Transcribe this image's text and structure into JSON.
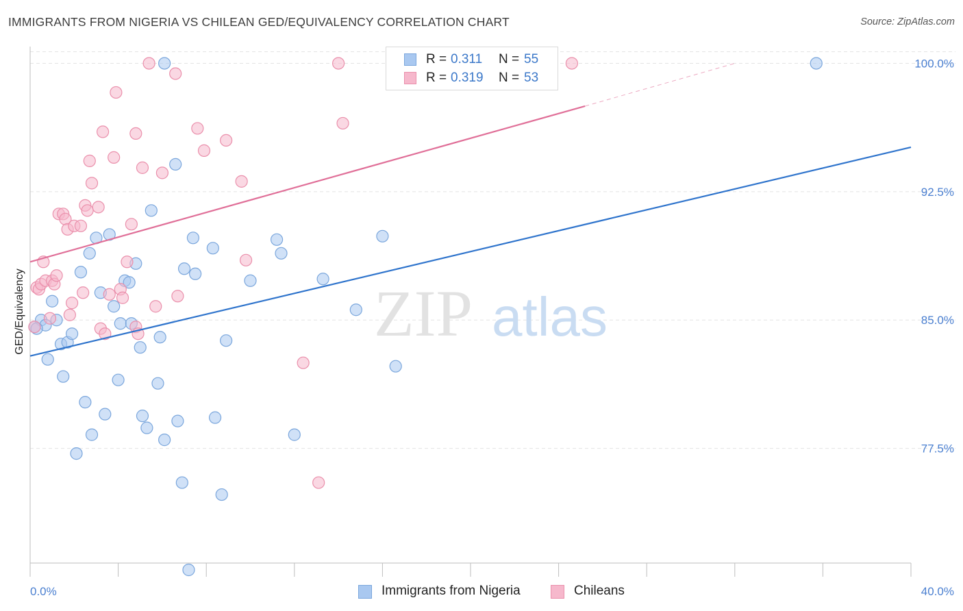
{
  "header": {
    "title": "IMMIGRANTS FROM NIGERIA VS CHILEAN GED/EQUIVALENCY CORRELATION CHART",
    "source": "Source: ZipAtlas.com"
  },
  "watermark": {
    "zip": "ZIP",
    "atlas": "atlas"
  },
  "legend": {
    "r_label": "R =",
    "n_label": "N =",
    "series": [
      {
        "r": "0.311",
        "n": "55"
      },
      {
        "r": "0.319",
        "n": "53"
      }
    ]
  },
  "bottom_legend": {
    "nigeria": "Immigrants from Nigeria",
    "chileans": "Chileans"
  },
  "chart_data": {
    "type": "scatter",
    "xlabel": "",
    "ylabel": "GED/Equivalency",
    "xlim": [
      0,
      40
    ],
    "ylim": [
      70.8,
      101.5
    ],
    "x_tick_labels": [
      "0.0%",
      "40.0%"
    ],
    "y_ticks": [
      77.5,
      85.0,
      92.5,
      100.0
    ],
    "y_tick_labels": [
      "77.5%",
      "85.0%",
      "92.5%",
      "100.0%"
    ],
    "grid": true,
    "legend_position": "top-center",
    "colors": {
      "nigeria_fill": "#a9c8f0",
      "nigeria_stroke": "#7aa6dc",
      "nigeria_line": "#2f74cc",
      "chileans_fill": "#f6b8cc",
      "chileans_stroke": "#ea8fab",
      "chileans_line": "#e06f98",
      "tick_text": "#4a7fd0"
    },
    "series": [
      {
        "name": "Immigrants from Nigeria",
        "trend": {
          "x": [
            0,
            40
          ],
          "y": [
            82.9,
            95.1
          ]
        },
        "points": [
          [
            0.2,
            84.6
          ],
          [
            0.5,
            85.0
          ],
          [
            0.7,
            84.7
          ],
          [
            0.8,
            82.7
          ],
          [
            1.0,
            86.1
          ],
          [
            1.2,
            85.0
          ],
          [
            1.4,
            83.6
          ],
          [
            1.5,
            81.7
          ],
          [
            1.7,
            83.7
          ],
          [
            1.9,
            84.2
          ],
          [
            2.1,
            77.2
          ],
          [
            2.3,
            87.8
          ],
          [
            2.5,
            80.2
          ],
          [
            2.7,
            88.9
          ],
          [
            2.8,
            78.3
          ],
          [
            3.0,
            89.8
          ],
          [
            3.2,
            86.6
          ],
          [
            3.4,
            79.5
          ],
          [
            3.6,
            90.0
          ],
          [
            3.8,
            85.8
          ],
          [
            4.0,
            81.5
          ],
          [
            4.1,
            84.8
          ],
          [
            4.3,
            87.3
          ],
          [
            4.5,
            87.2
          ],
          [
            4.6,
            84.8
          ],
          [
            4.8,
            88.3
          ],
          [
            5.0,
            83.4
          ],
          [
            5.1,
            79.4
          ],
          [
            5.3,
            78.7
          ],
          [
            5.5,
            91.4
          ],
          [
            5.8,
            81.3
          ],
          [
            5.9,
            84.0
          ],
          [
            6.1,
            78.0
          ],
          [
            6.1,
            100.0
          ],
          [
            6.6,
            94.1
          ],
          [
            6.7,
            79.1
          ],
          [
            6.9,
            75.5
          ],
          [
            7.0,
            88.0
          ],
          [
            7.2,
            70.4
          ],
          [
            7.4,
            89.8
          ],
          [
            7.5,
            87.7
          ],
          [
            8.3,
            89.2
          ],
          [
            8.4,
            79.3
          ],
          [
            8.7,
            74.8
          ],
          [
            8.9,
            83.8
          ],
          [
            10.0,
            87.3
          ],
          [
            11.2,
            89.7
          ],
          [
            11.4,
            88.9
          ],
          [
            12.0,
            78.3
          ],
          [
            13.3,
            87.4
          ],
          [
            14.8,
            85.6
          ],
          [
            16.0,
            89.9
          ],
          [
            16.6,
            82.3
          ],
          [
            35.7,
            100.0
          ],
          [
            0.3,
            84.5
          ]
        ]
      },
      {
        "name": "Chileans",
        "trend": {
          "x": [
            0,
            25.2
          ],
          "y": [
            88.4,
            97.5
          ]
        },
        "trend_dashed": {
          "x": [
            25.2,
            32.0
          ],
          "y": [
            97.5,
            100.0
          ]
        },
        "points": [
          [
            0.2,
            84.6
          ],
          [
            0.3,
            86.9
          ],
          [
            0.4,
            86.8
          ],
          [
            0.5,
            87.1
          ],
          [
            0.6,
            88.4
          ],
          [
            0.7,
            87.3
          ],
          [
            0.9,
            85.1
          ],
          [
            1.0,
            87.3
          ],
          [
            1.1,
            87.1
          ],
          [
            1.2,
            87.6
          ],
          [
            1.3,
            91.2
          ],
          [
            1.5,
            91.2
          ],
          [
            1.6,
            90.9
          ],
          [
            1.7,
            90.3
          ],
          [
            1.8,
            85.3
          ],
          [
            1.9,
            86.0
          ],
          [
            2.0,
            90.5
          ],
          [
            2.3,
            90.5
          ],
          [
            2.4,
            86.6
          ],
          [
            2.5,
            91.7
          ],
          [
            2.6,
            91.4
          ],
          [
            2.7,
            94.3
          ],
          [
            2.8,
            93.0
          ],
          [
            3.1,
            91.6
          ],
          [
            3.2,
            84.5
          ],
          [
            3.3,
            96.0
          ],
          [
            3.4,
            84.2
          ],
          [
            3.6,
            86.5
          ],
          [
            3.8,
            94.5
          ],
          [
            3.9,
            98.3
          ],
          [
            4.1,
            86.8
          ],
          [
            4.2,
            86.3
          ],
          [
            4.4,
            88.4
          ],
          [
            4.6,
            90.6
          ],
          [
            4.8,
            84.6
          ],
          [
            4.8,
            95.9
          ],
          [
            4.9,
            84.2
          ],
          [
            5.1,
            93.9
          ],
          [
            5.4,
            100.0
          ],
          [
            5.7,
            85.8
          ],
          [
            6.0,
            93.6
          ],
          [
            6.6,
            99.4
          ],
          [
            6.7,
            86.4
          ],
          [
            7.6,
            96.2
          ],
          [
            7.9,
            94.9
          ],
          [
            8.9,
            95.5
          ],
          [
            9.6,
            93.1
          ],
          [
            9.8,
            88.5
          ],
          [
            12.4,
            82.5
          ],
          [
            13.1,
            75.5
          ],
          [
            14.0,
            100.0
          ],
          [
            14.2,
            96.5
          ],
          [
            24.6,
            100.0
          ]
        ]
      }
    ]
  }
}
